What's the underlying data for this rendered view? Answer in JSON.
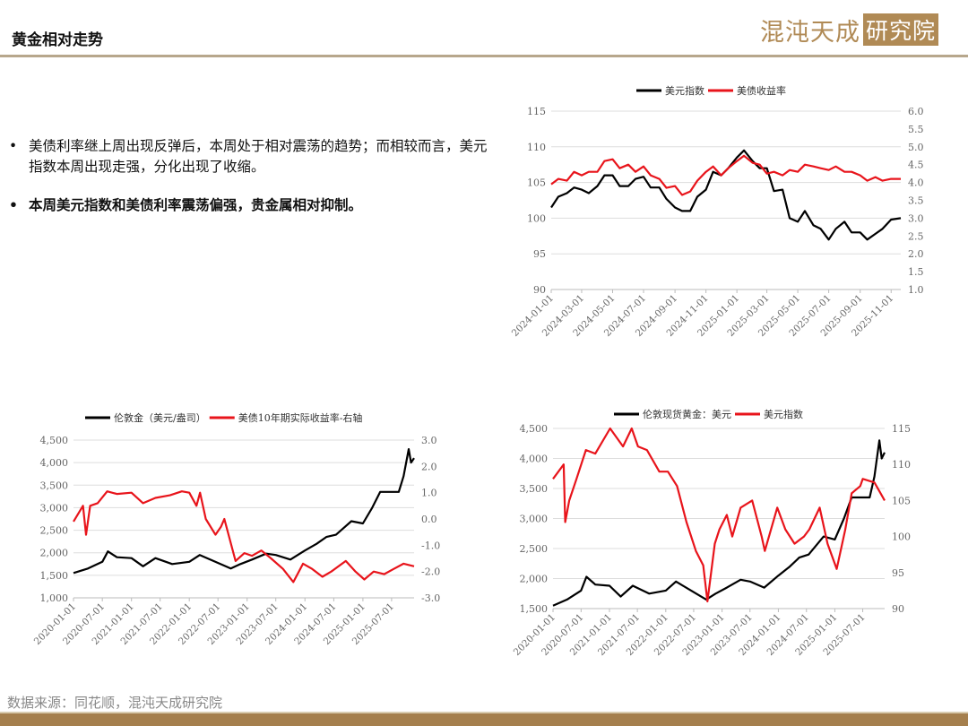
{
  "header": {
    "title": "黄金相对走势",
    "logo": "混沌天成研究院",
    "logo_main": "混沌天成",
    "logo_box": "研究院"
  },
  "bullets": [
    {
      "text": "美债利率继上周出现反弹后，本周处于相对震荡的趋势；而相较而言，美元指数本周出现走强，分化出现了收缩。"
    },
    {
      "text": "本周美元指数和美债利率震荡偏强，贵金属相对抑制。"
    }
  ],
  "footer": {
    "source": "数据来源：同花顺，混沌天成研究院"
  },
  "colors": {
    "black": "#000000",
    "red": "#e8141b",
    "accent": "#a57f4d"
  },
  "chart_data": [
    {
      "type": "line",
      "title": "",
      "legend": [
        "美元指数",
        "美债收益率"
      ],
      "legend_placement": "top",
      "x_ticks": [
        "2024-01-01",
        "2024-03-01",
        "2024-05-01",
        "2024-07-01",
        "2024-09-01",
        "2024-11-01",
        "2025-01-01",
        "2025-03-01",
        "2025-05-01",
        "2025-07-01",
        "2025-09-01",
        "2025-11-01"
      ],
      "x_range": [
        "2024-01-01",
        "2025-11-20"
      ],
      "y_left": {
        "range": [
          90,
          115
        ],
        "ticks": [
          "90",
          "95",
          "100",
          "105",
          "110",
          "115"
        ]
      },
      "y_right": {
        "range": [
          1.0,
          6.0
        ],
        "reversed": false,
        "ticks": [
          "1.0",
          "1.5",
          "2.0",
          "2.5",
          "3.0",
          "3.5",
          "4.0",
          "4.5",
          "5.0",
          "5.5",
          "6.0"
        ]
      },
      "series": [
        {
          "name": "美元指数",
          "axis": "left",
          "color": "#000000",
          "x": [
            "2024-01-01",
            "2024-01-15",
            "2024-02-01",
            "2024-02-15",
            "2024-03-01",
            "2024-03-15",
            "2024-04-01",
            "2024-04-15",
            "2024-05-01",
            "2024-05-15",
            "2024-06-01",
            "2024-06-15",
            "2024-07-01",
            "2024-07-15",
            "2024-08-01",
            "2024-08-15",
            "2024-09-01",
            "2024-09-15",
            "2024-10-01",
            "2024-10-15",
            "2024-11-01",
            "2024-11-15",
            "2024-12-01",
            "2024-12-15",
            "2025-01-01",
            "2025-01-15",
            "2025-02-01",
            "2025-02-15",
            "2025-03-01",
            "2025-03-15",
            "2025-04-01",
            "2025-04-15",
            "2025-05-01",
            "2025-05-15",
            "2025-06-01",
            "2025-06-15",
            "2025-07-01",
            "2025-07-15",
            "2025-08-01",
            "2025-08-15",
            "2025-09-01",
            "2025-09-15",
            "2025-10-01",
            "2025-10-15",
            "2025-11-01",
            "2025-11-20"
          ],
          "values": [
            101.5,
            103,
            103.5,
            104.3,
            104,
            103.5,
            104.5,
            106,
            106,
            104.5,
            104.5,
            105.5,
            105.8,
            104.3,
            104.3,
            102.7,
            101.5,
            101,
            101,
            103,
            104,
            106.5,
            106,
            107,
            108.5,
            109.5,
            108,
            107,
            107,
            103.8,
            104,
            100,
            99.5,
            101,
            99,
            98.5,
            97,
            98.5,
            99.5,
            98,
            98,
            97,
            97.8,
            98.5,
            99.8,
            100.0
          ]
        },
        {
          "name": "美债收益率",
          "axis": "right",
          "color": "#e8141b",
          "x": [
            "2024-01-01",
            "2024-01-15",
            "2024-02-01",
            "2024-02-15",
            "2024-03-01",
            "2024-03-15",
            "2024-04-01",
            "2024-04-15",
            "2024-05-01",
            "2024-05-15",
            "2024-06-01",
            "2024-06-15",
            "2024-07-01",
            "2024-07-15",
            "2024-08-01",
            "2024-08-15",
            "2024-09-01",
            "2024-09-15",
            "2024-10-01",
            "2024-10-15",
            "2024-11-01",
            "2024-11-15",
            "2024-12-01",
            "2024-12-15",
            "2025-01-01",
            "2025-01-15",
            "2025-02-01",
            "2025-02-15",
            "2025-03-01",
            "2025-03-15",
            "2025-04-01",
            "2025-04-15",
            "2025-05-01",
            "2025-05-15",
            "2025-06-01",
            "2025-06-15",
            "2025-07-01",
            "2025-07-15",
            "2025-08-01",
            "2025-08-15",
            "2025-09-01",
            "2025-09-15",
            "2025-10-01",
            "2025-10-15",
            "2025-11-01",
            "2025-11-20"
          ],
          "values": [
            3.95,
            4.1,
            4.05,
            4.3,
            4.2,
            4.3,
            4.3,
            4.6,
            4.65,
            4.4,
            4.5,
            4.3,
            4.45,
            4.2,
            4.1,
            3.85,
            3.9,
            3.65,
            3.75,
            4.05,
            4.3,
            4.45,
            4.2,
            4.4,
            4.6,
            4.75,
            4.55,
            4.5,
            4.25,
            4.3,
            4.2,
            4.35,
            4.3,
            4.5,
            4.45,
            4.4,
            4.35,
            4.45,
            4.3,
            4.3,
            4.2,
            4.05,
            4.15,
            4.05,
            4.1,
            4.1
          ]
        }
      ]
    },
    {
      "type": "line",
      "title": "",
      "legend": [
        "伦敦金（美元/盎司）",
        "美债10年期实际收益率-右轴"
      ],
      "legend_placement": "top",
      "x_ticks": [
        "2020-01-01",
        "2020-07-01",
        "2021-01-01",
        "2021-07-01",
        "2022-01-01",
        "2022-07-01",
        "2023-01-01",
        "2023-07-01",
        "2024-01-01",
        "2024-07-01",
        "2025-01-01",
        "2025-07-01"
      ],
      "x_range": [
        "2020-01-01",
        "2025-11-20"
      ],
      "y_left": {
        "range": [
          1000,
          4500
        ],
        "ticks": [
          "1,000",
          "1,500",
          "2,000",
          "2,500",
          "3,000",
          "3,500",
          "4,000",
          "4,500"
        ]
      },
      "y_right": {
        "range": [
          -3.0,
          3.0
        ],
        "reversed": true,
        "ticks": [
          "-3.0",
          "-2.0",
          "-1.0",
          "0.0",
          "1.0",
          "2.0",
          "3.0"
        ]
      },
      "series": [
        {
          "name": "伦敦金（美元/盎司）",
          "axis": "left",
          "color": "#000000",
          "x": [
            "2020-01-01",
            "2020-04-01",
            "2020-07-01",
            "2020-08-05",
            "2020-10-01",
            "2021-01-01",
            "2021-03-15",
            "2021-06-01",
            "2021-09-15",
            "2022-01-01",
            "2022-03-08",
            "2022-06-01",
            "2022-09-20",
            "2022-11-20",
            "2023-02-01",
            "2023-05-01",
            "2023-07-01",
            "2023-10-01",
            "2024-01-01",
            "2024-03-15",
            "2024-05-15",
            "2024-07-15",
            "2024-10-20",
            "2025-01-01",
            "2025-03-01",
            "2025-04-20",
            "2025-06-15",
            "2025-08-15",
            "2025-09-15",
            "2025-10-17",
            "2025-11-01",
            "2025-11-20"
          ],
          "values": [
            1550,
            1650,
            1800,
            2030,
            1900,
            1880,
            1700,
            1880,
            1750,
            1800,
            1950,
            1820,
            1650,
            1750,
            1850,
            1980,
            1950,
            1850,
            2050,
            2200,
            2350,
            2400,
            2700,
            2650,
            3000,
            3350,
            3350,
            3350,
            3700,
            4300,
            4000,
            4100
          ]
        },
        {
          "name": "美债10年期实际收益率-右轴",
          "axis": "right",
          "color": "#e8141b",
          "x": [
            "2020-01-01",
            "2020-03-01",
            "2020-03-20",
            "2020-04-15",
            "2020-06-01",
            "2020-08-01",
            "2020-10-01",
            "2021-01-01",
            "2021-03-15",
            "2021-06-01",
            "2021-09-01",
            "2021-11-15",
            "2022-01-01",
            "2022-02-15",
            "2022-03-10",
            "2022-04-15",
            "2022-06-15",
            "2022-07-20",
            "2022-08-10",
            "2022-10-20",
            "2022-12-15",
            "2023-02-01",
            "2023-04-01",
            "2023-06-01",
            "2023-08-15",
            "2023-10-20",
            "2023-12-20",
            "2024-02-15",
            "2024-04-20",
            "2024-06-15",
            "2024-09-15",
            "2024-11-15",
            "2025-01-10",
            "2025-03-10",
            "2025-05-15",
            "2025-07-15",
            "2025-09-15",
            "2025-11-20"
          ],
          "values": [
            0.1,
            -0.5,
            0.6,
            -0.5,
            -0.6,
            -1.05,
            -0.95,
            -1.0,
            -0.6,
            -0.8,
            -0.9,
            -1.05,
            -1.0,
            -0.5,
            -1.0,
            0.0,
            0.6,
            0.3,
            0.0,
            1.6,
            1.3,
            1.4,
            1.2,
            1.5,
            1.9,
            2.4,
            1.7,
            1.9,
            2.2,
            2.0,
            1.6,
            2.0,
            2.3,
            2.0,
            2.1,
            1.9,
            1.7,
            1.8
          ]
        }
      ]
    },
    {
      "type": "line",
      "title": "",
      "legend": [
        "伦敦现货黄金：美元",
        "美元指数"
      ],
      "legend_placement": "top",
      "x_ticks": [
        "2020-01-01",
        "2020-07-01",
        "2021-01-01",
        "2021-07-01",
        "2022-01-01",
        "2022-07-01",
        "2023-01-01",
        "2023-07-01",
        "2024-01-01",
        "2024-07-01",
        "2025-01-01",
        "2025-07-01"
      ],
      "x_range": [
        "2020-01-01",
        "2025-11-20"
      ],
      "y_left": {
        "range": [
          1500,
          4500
        ],
        "ticks": [
          "1,500",
          "2,000",
          "2,500",
          "3,000",
          "3,500",
          "4,000",
          "4,500"
        ]
      },
      "y_right": {
        "range": [
          90,
          115
        ],
        "reversed": true,
        "ticks": [
          "90",
          "95",
          "100",
          "105",
          "110",
          "115"
        ]
      },
      "series": [
        {
          "name": "伦敦现货黄金：美元",
          "axis": "left",
          "color": "#000000",
          "x": [
            "2020-01-01",
            "2020-04-01",
            "2020-07-01",
            "2020-08-05",
            "2020-10-01",
            "2021-01-01",
            "2021-03-15",
            "2021-06-01",
            "2021-09-15",
            "2022-01-01",
            "2022-03-08",
            "2022-06-01",
            "2022-09-20",
            "2022-11-20",
            "2023-02-01",
            "2023-05-01",
            "2023-07-01",
            "2023-10-01",
            "2024-01-01",
            "2024-03-15",
            "2024-05-15",
            "2024-07-15",
            "2024-10-20",
            "2025-01-01",
            "2025-03-01",
            "2025-04-20",
            "2025-06-15",
            "2025-08-15",
            "2025-09-15",
            "2025-10-17",
            "2025-11-01",
            "2025-11-20"
          ],
          "values": [
            1550,
            1650,
            1800,
            2030,
            1900,
            1880,
            1700,
            1880,
            1750,
            1800,
            1950,
            1820,
            1650,
            1750,
            1850,
            1980,
            1950,
            1850,
            2050,
            2200,
            2350,
            2400,
            2700,
            2650,
            3000,
            3350,
            3350,
            3350,
            3700,
            4300,
            4000,
            4100
          ]
        },
        {
          "name": "美元指数",
          "axis": "right",
          "color": "#e8141b",
          "x": [
            "2020-01-01",
            "2020-03-10",
            "2020-03-20",
            "2020-04-15",
            "2020-06-01",
            "2020-08-01",
            "2020-10-01",
            "2021-01-05",
            "2021-03-30",
            "2021-05-25",
            "2021-07-05",
            "2021-09-01",
            "2021-11-20",
            "2022-01-15",
            "2022-03-15",
            "2022-05-15",
            "2022-07-15",
            "2022-09-01",
            "2022-09-28",
            "2022-11-15",
            "2022-12-15",
            "2023-02-01",
            "2023-03-08",
            "2023-05-01",
            "2023-07-15",
            "2023-09-15",
            "2023-10-05",
            "2023-12-25",
            "2024-02-15",
            "2024-04-15",
            "2024-06-15",
            "2024-07-20",
            "2024-09-25",
            "2024-11-15",
            "2025-01-13",
            "2025-03-10",
            "2025-04-20",
            "2025-06-15",
            "2025-07-01",
            "2025-09-15",
            "2025-10-25",
            "2025-11-20"
          ],
          "values": [
            97,
            95,
            103,
            100,
            97,
            93,
            93.5,
            90,
            92.5,
            90,
            92.5,
            93,
            96,
            96,
            98,
            103,
            107,
            109,
            114,
            106,
            104,
            102,
            105,
            101,
            100,
            105,
            107,
            101,
            104,
            106,
            105,
            104,
            101,
            106,
            109.5,
            104,
            99,
            98,
            97,
            97.5,
            99,
            100
          ]
        }
      ]
    }
  ]
}
